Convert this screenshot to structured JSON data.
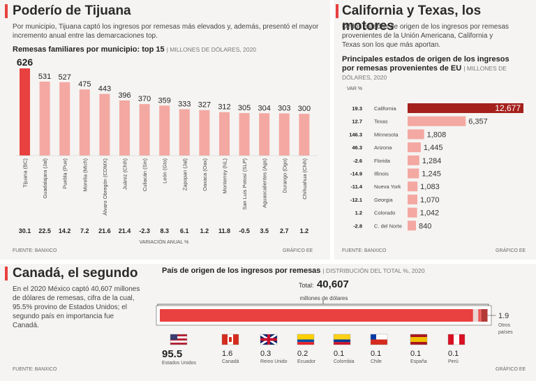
{
  "tijuana": {
    "title": "Poderío de Tijuana",
    "intro": "Por municipio, Tijuana captó los ingresos por remesas  más elevados y, además, presentó el mayor incremento anual entre las demarcaciones top.",
    "chart_title": "Remesas familiares por municipio: top 15",
    "chart_sub": "| MILLONES DE DÓLARES, 2020",
    "var_label": "VARIACIÓN ANUAL %",
    "source": "FUENTE: BANXICO",
    "credit": "GRÁFICO EE"
  },
  "california": {
    "title": "California y Texas, los motores",
    "intro": "De los estados de origen de los ingresos por remesas provenientes de la Unión Americana, California y Texas son los que más aportan.",
    "chart_title_1": "Principales estados de origen de los ingresos",
    "chart_title_2": "por remesas provenientes de EU",
    "chart_sub": "| MILLONES DE",
    "chart_sub_2": "DÓLARES, 2020",
    "var_label": "VAR %",
    "source": "FUENTE: BANXICO",
    "credit": "GRÁFICO EE"
  },
  "canada": {
    "title": "Canadá, el segundo",
    "intro": "En el 2020 México captó 40,607 millones de dólares de remesas, cifra de la cual, 95.5% provino de Estados Unidos; el segundo país en importancia fue Canadá.",
    "chart_title": "País de origen de los ingresos por remesas",
    "chart_sub": "| DISTRIBUCIÓN DEL TOTAL %, 2020",
    "total_label": "Total:",
    "total_value": "40,607",
    "total_unit": "millones de dólares",
    "source": "FUENTE: BANXICO",
    "credit": "GRÁFICO EE"
  },
  "colors": {
    "accent": "#e8413f",
    "light": "#f4a8a2",
    "dark": "#a5201c",
    "panel": "#f5f4f2"
  },
  "chart_data": [
    {
      "type": "bar",
      "title": "Remesas familiares por municipio: top 15",
      "categories": [
        "Tijuana (BC)",
        "Guadalajara (Jal)",
        "Puebla (Pue)",
        "Morelia (Mich)",
        "Álvaro Obregón (CDMX)",
        "Juárez (Chih)",
        "Culiacán (Sin)",
        "León (Gto)",
        "Zapopan (Jal)",
        "Oaxaca (Oax)",
        "Monterrey (NL)",
        "San Luis Potosí (SLP)",
        "Aguascalientes (Ags)",
        "Durango (Dgo)",
        "Chihuahua (Chih)"
      ],
      "values": [
        626,
        531,
        527,
        475,
        443,
        396,
        370,
        359,
        333,
        327,
        312,
        305,
        304,
        303,
        300
      ],
      "variation": [
        "30.1",
        "22.5",
        "14.2",
        "7.2",
        "21.6",
        "21.4",
        "-2.3",
        "8.3",
        "6.1",
        "1.2",
        "11.8",
        "-0.5",
        "3.5",
        "2.7",
        "1.2"
      ],
      "ylim": [
        0,
        626
      ]
    },
    {
      "type": "bar",
      "orientation": "horizontal",
      "title": "Principales estados de origen de los ingresos por remesas provenientes de EU",
      "categories": [
        "California",
        "Texas",
        "Minnesota",
        "Arizona",
        "Florida",
        "Illinois",
        "Nueva York",
        "Georgia",
        "Colorado",
        "C. del Norte"
      ],
      "values": [
        12677,
        6357,
        1808,
        1445,
        1284,
        1245,
        1083,
        1070,
        1042,
        840
      ],
      "value_labels": [
        "12,677",
        "6,357",
        "1,808",
        "1,445",
        "1,284",
        "1,245",
        "1,083",
        "1,070",
        "1,042",
        "840"
      ],
      "variation": [
        "19.3",
        "12.7",
        "146.3",
        "46.3",
        "-2.6",
        "-14.9",
        "-11.4",
        "-12.1",
        "1.2",
        "-2.8"
      ]
    },
    {
      "type": "bar",
      "orientation": "stacked-horizontal",
      "title": "País de origen de los ingresos por remesas",
      "categories": [
        "Estados Unidos",
        "Canadá",
        "Reino Unido",
        "Ecuador",
        "Colombia",
        "Chile",
        "España",
        "Perú",
        "Otros países"
      ],
      "values": [
        95.5,
        1.6,
        0.3,
        0.2,
        0.1,
        0.1,
        0.1,
        0.1,
        1.9
      ],
      "value_labels": [
        "95.5",
        "1.6",
        "0.3",
        "0.2",
        "0.1",
        "0.1",
        "0.1",
        "0.1",
        "1.9"
      ]
    }
  ]
}
